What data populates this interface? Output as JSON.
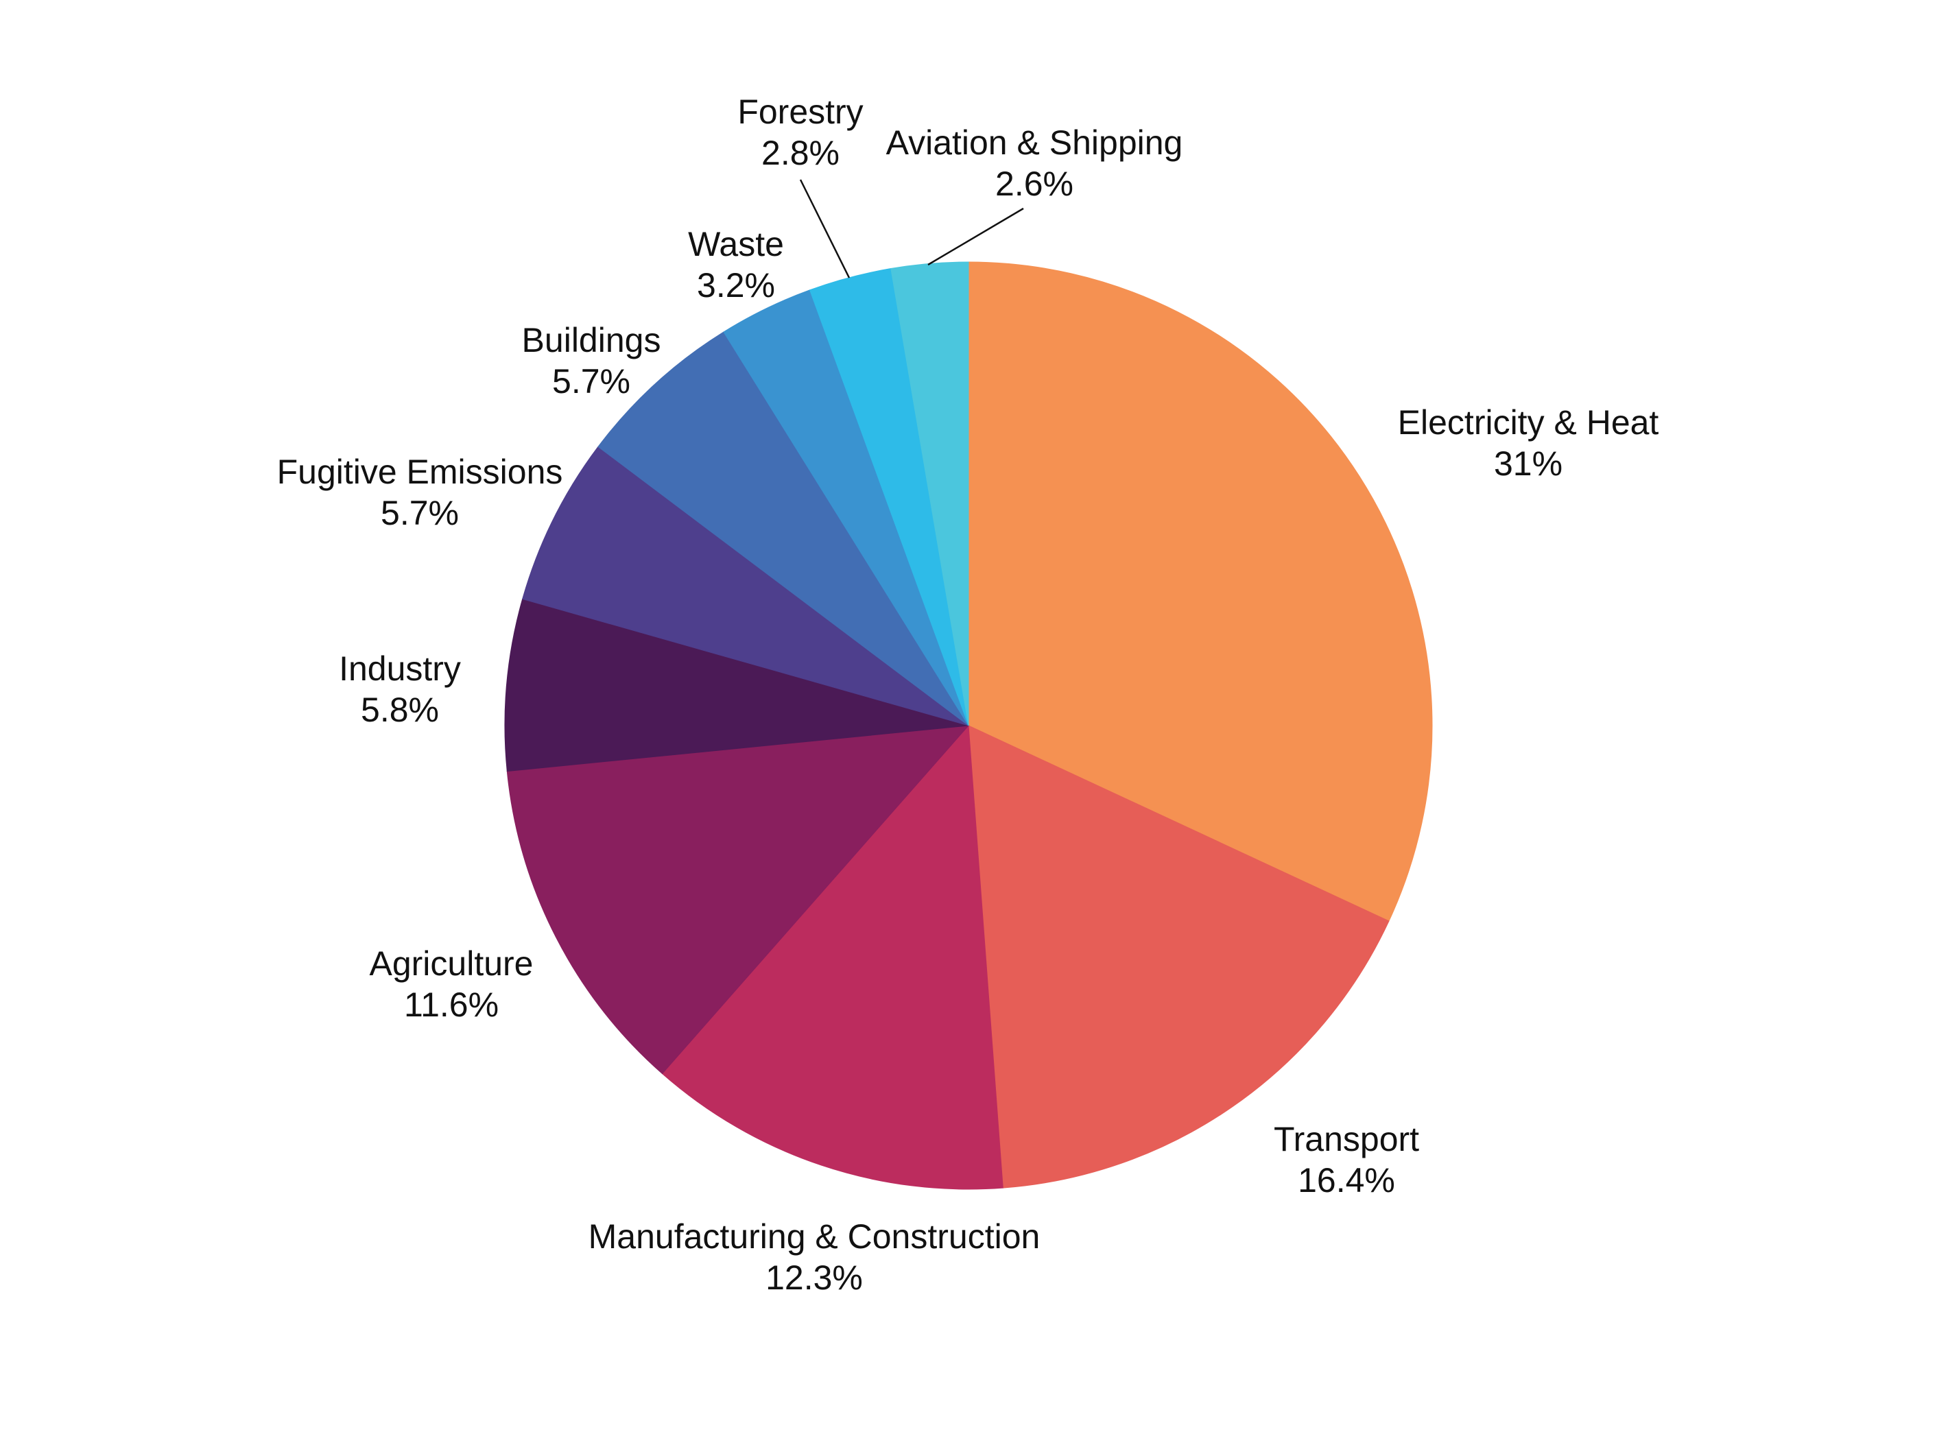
{
  "chart_data": {
    "type": "pie",
    "title": "",
    "start_angle_deg": 0,
    "direction": "clockwise",
    "unit": "%",
    "categories": [
      "Electricity & Heat",
      "Transport",
      "Manufacturing & Construction",
      "Agriculture",
      "Industry",
      "Fugitive Emissions",
      "Buildings",
      "Waste",
      "Forestry",
      "Aviation & Shipping"
    ],
    "values": [
      31,
      16.4,
      12.3,
      11.6,
      5.8,
      5.7,
      5.7,
      3.2,
      2.8,
      2.6
    ],
    "value_labels": [
      "31%",
      "16.4%",
      "12.3%",
      "11.6%",
      "5.8%",
      "5.7%",
      "5.7%",
      "3.2%",
      "2.8%",
      "2.6%"
    ],
    "colors": [
      "#F59152",
      "#E65E57",
      "#BC2C5E",
      "#891F5E",
      "#4B1A56",
      "#4E3F8D",
      "#426EB4",
      "#3A93D0",
      "#2EBBE8",
      "#4BC6DD"
    ],
    "legend": "none",
    "labels_position": "outside"
  },
  "slices": [
    {
      "label": "Electricity & Heat",
      "value_text": "31%"
    },
    {
      "label": "Transport",
      "value_text": "16.4%"
    },
    {
      "label": "Manufacturing & Construction",
      "value_text": "12.3%"
    },
    {
      "label": "Agriculture",
      "value_text": "11.6%"
    },
    {
      "label": "Industry",
      "value_text": "5.8%"
    },
    {
      "label": "Fugitive Emissions",
      "value_text": "5.7%"
    },
    {
      "label": "Buildings",
      "value_text": "5.7%"
    },
    {
      "label": "Waste",
      "value_text": "3.2%"
    },
    {
      "label": "Forestry",
      "value_text": "2.8%"
    },
    {
      "label": "Aviation & Shipping",
      "value_text": "2.6%"
    }
  ]
}
